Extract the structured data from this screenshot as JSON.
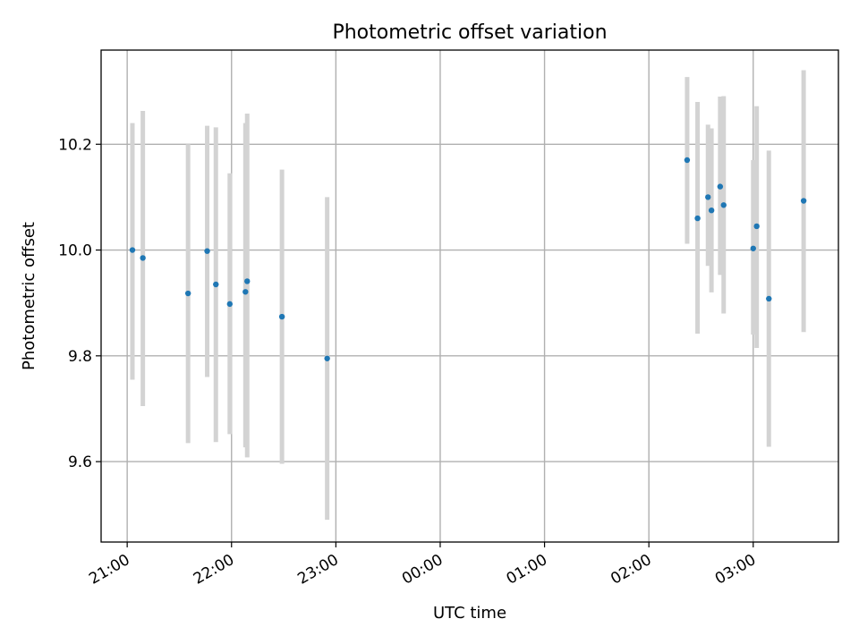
{
  "chart_data": {
    "type": "scatter",
    "title": "Photometric offset variation",
    "xlabel": "UTC time",
    "ylabel": "Photometric offset",
    "x_ticks": [
      "21:00",
      "22:00",
      "23:00",
      "00:00",
      "01:00",
      "02:00",
      "03:00"
    ],
    "y_ticks": [
      "9.6",
      "9.8",
      "10.0",
      "10.2"
    ],
    "x_range": [
      "20:45",
      "03:49"
    ],
    "ylim": [
      9.448,
      10.378
    ],
    "grid": true,
    "x_tick_label_rotation": 30,
    "point_color": "#1f77b4",
    "errorbar_color": "#d3d3d3",
    "series": [
      {
        "errorbars": true,
        "points": [
          {
            "x": "21:03",
            "y": 10.0,
            "ylow": 9.755,
            "yhigh": 10.24
          },
          {
            "x": "21:09",
            "y": 9.985,
            "ylow": 9.705,
            "yhigh": 10.263
          },
          {
            "x": "21:35",
            "y": 9.918,
            "ylow": 9.635,
            "yhigh": 10.2
          },
          {
            "x": "21:46",
            "y": 9.998,
            "ylow": 9.76,
            "yhigh": 10.235
          },
          {
            "x": "21:51",
            "y": 9.935,
            "ylow": 9.637,
            "yhigh": 10.232
          },
          {
            "x": "21:59",
            "y": 9.898,
            "ylow": 9.652,
            "yhigh": 10.145
          },
          {
            "x": "22:08",
            "y": 9.921,
            "ylow": 9.627,
            "yhigh": 10.24
          },
          {
            "x": "22:09",
            "y": 9.941,
            "ylow": 9.608,
            "yhigh": 10.258
          },
          {
            "x": "22:29",
            "y": 9.874,
            "ylow": 9.596,
            "yhigh": 10.152
          },
          {
            "x": "22:55",
            "y": 9.795,
            "ylow": 9.49,
            "yhigh": 10.1
          },
          {
            "x": "02:22",
            "y": 10.17,
            "ylow": 10.012,
            "yhigh": 10.327
          },
          {
            "x": "02:28",
            "y": 10.06,
            "ylow": 9.842,
            "yhigh": 10.28
          },
          {
            "x": "02:34",
            "y": 10.1,
            "ylow": 9.97,
            "yhigh": 10.237
          },
          {
            "x": "02:36",
            "y": 10.075,
            "ylow": 9.92,
            "yhigh": 10.23
          },
          {
            "x": "02:41",
            "y": 10.12,
            "ylow": 9.953,
            "yhigh": 10.29
          },
          {
            "x": "02:43",
            "y": 10.085,
            "ylow": 9.88,
            "yhigh": 10.291
          },
          {
            "x": "03:00",
            "y": 10.003,
            "ylow": 9.84,
            "yhigh": 10.17
          },
          {
            "x": "03:02",
            "y": 10.045,
            "ylow": 9.815,
            "yhigh": 10.272
          },
          {
            "x": "03:09",
            "y": 9.908,
            "ylow": 9.628,
            "yhigh": 10.188
          },
          {
            "x": "03:29",
            "y": 10.093,
            "ylow": 9.845,
            "yhigh": 10.34
          }
        ]
      }
    ]
  }
}
